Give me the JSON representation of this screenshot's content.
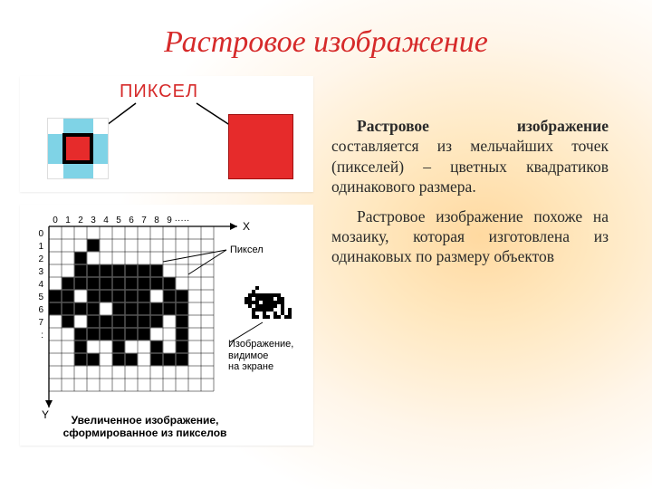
{
  "title": "Растровое изображение",
  "paragraphs": {
    "p1_lead": "Растровое изображение",
    "p1_rest": " составляется из мельчайших точек (пикселей) – цветных квадратиков одинакового размера.",
    "p2": "Растровое изображение похоже на мозаику, которая изготовлена из одинаковых по размеру объектов"
  },
  "fig1": {
    "label": "ПИКСЕЛ",
    "grid4_colors": [
      "w",
      "c",
      "c",
      "w",
      "c",
      "w",
      "w",
      "c",
      "c",
      "w",
      "w",
      "c",
      "w",
      "c",
      "c",
      "w"
    ],
    "cyan": "#7fd3e6",
    "red": "#e62b2b"
  },
  "fig2": {
    "axis_x": "X",
    "axis_y": "Y",
    "x_ticks": [
      "0",
      "1",
      "2",
      "3",
      "4",
      "5",
      "6",
      "7",
      "8",
      "9",
      "·····"
    ],
    "y_ticks": [
      "0",
      "1",
      "2",
      "3",
      "4",
      "5",
      "6",
      "7",
      ":"
    ],
    "pixel_label": "Пиксел",
    "screen_label_l1": "Изображение,",
    "screen_label_l2": "видимое",
    "screen_label_l3": "на экране",
    "caption_l1": "Увеличенное изображение,",
    "caption_l2": "сформированное из пикселов",
    "cat_rows": [
      "0001000000000",
      "0010000000000",
      "0011111110000",
      "0111111111000",
      "1101111101100",
      "1111011111100",
      "0101111110100",
      "0011111100100",
      "0010010010100",
      "0011011011100",
      "0000000000000"
    ],
    "small_cat_rows": [
      "00010000000000",
      "00100000000000",
      "01111111110000",
      "11011111011000",
      "11110111111000",
      "01011111101000",
      "00111111001010",
      "00100100101010",
      "00110110110110"
    ],
    "grid_color": "#000000",
    "cell": 14
  }
}
